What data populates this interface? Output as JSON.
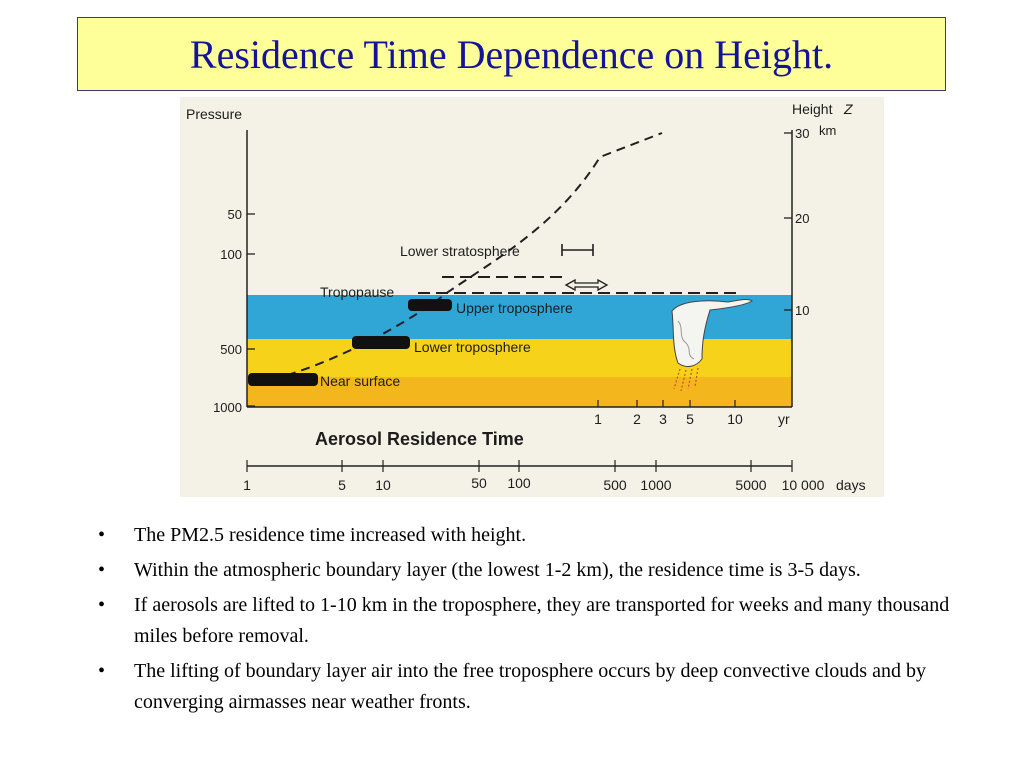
{
  "slide": {
    "title": "Residence Time Dependence on Height."
  },
  "figure": {
    "left_axis_label": "Pressure",
    "right_axis_label": "Height",
    "right_axis_symbol": "Z",
    "right_axis_unit": "km",
    "pressure_ticks": [
      "50",
      "100",
      "500",
      "1000"
    ],
    "height_ticks": [
      "30",
      "20",
      "10"
    ],
    "layer_labels": {
      "lower_stratosphere": "Lower stratosphere",
      "tropopause": "Tropopause",
      "upper_troposphere": "Upper troposphere",
      "lower_troposphere": "Lower troposphere",
      "near_surface": "Near surface"
    },
    "chart_title": "Aerosol Residence Time",
    "year_ticks": [
      "1",
      "2",
      "3",
      "5",
      "10"
    ],
    "year_unit": "yr",
    "day_ticks": [
      "1",
      "5",
      "10",
      "50",
      "100",
      "500",
      "1000",
      "5000",
      "10 000"
    ],
    "day_unit": "days",
    "colors": {
      "blue_band": "#2fa6d6",
      "yellow_band": "#f7d21a",
      "orange_band": "#f3b61c",
      "title_bg": "#ffff99",
      "title_text": "#14149a"
    }
  },
  "bullets": [
    "The PM2.5 residence time increased with height.",
    "Within the atmospheric boundary layer (the lowest 1-2 km), the residence time is 3-5 days.",
    "If aerosols are lifted to 1-10 km in the troposphere, they are transported for weeks and many thousand miles before removal.",
    "The lifting of boundary layer air into the free troposphere occurs by deep convective clouds and by converging airmasses near weather fronts."
  ]
}
